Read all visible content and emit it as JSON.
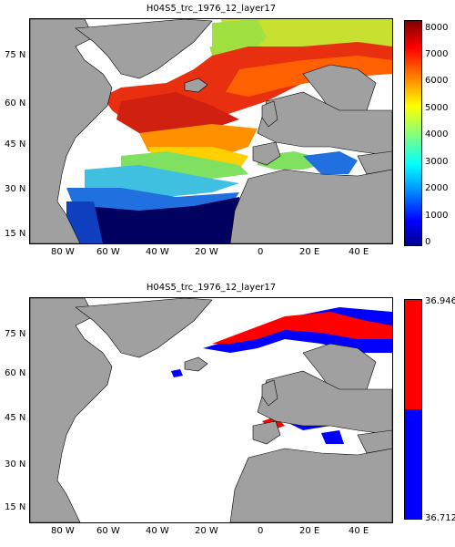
{
  "panels": [
    {
      "title": "H04S5_trc_1976_12_layer17",
      "x_ticks": [
        "80 W",
        "60 W",
        "40 W",
        "20 W",
        "0",
        "20 E",
        "40 E"
      ],
      "y_ticks": [
        "75 N",
        "60 N",
        "45 N",
        "30 N",
        "15 N"
      ],
      "colorbar": {
        "type": "jet",
        "ticks": [
          "8000",
          "7000",
          "6000",
          "5000",
          "4000",
          "3000",
          "2000",
          "1000",
          "0"
        ],
        "range": [
          0,
          8000
        ]
      }
    },
    {
      "title": "H04S5_trc_1976_12_layer17",
      "x_ticks": [
        "80 W",
        "60 W",
        "40 W",
        "20 W",
        "0",
        "20 E",
        "40 E"
      ],
      "y_ticks": [
        "75 N",
        "60 N",
        "45 N",
        "30 N",
        "15 N"
      ],
      "colorbar": {
        "type": "two-class",
        "top_label": "36.946",
        "bottom_label": "36.712",
        "colors": [
          "#ff0000",
          "#0000ff"
        ]
      }
    }
  ],
  "colors": {
    "land": "#a0a0a0",
    "ocean_nodata": "#ffffff",
    "high": "#ff0000",
    "low": "#0000ff"
  }
}
